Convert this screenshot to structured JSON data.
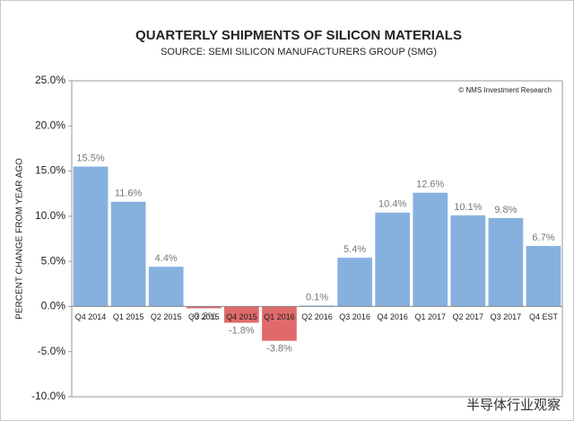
{
  "chart_data": {
    "type": "bar",
    "title": "QUARTERLY SHIPMENTS OF SILICON MATERIALS",
    "subtitle": "SOURCE: SEMI SILICON MANUFACTURERS GROUP (SMG)",
    "y_label": "PERCENT CHANGE FROM YEAR AGO",
    "annotation": "© NMS Investment Research",
    "watermark": "半导体行业观察",
    "categories": [
      "Q4 2014",
      "Q1 2015",
      "Q2 2015",
      "Q3 2015",
      "Q4 2015",
      "Q1 2016",
      "Q2 2016",
      "Q3 2016",
      "Q4 2016",
      "Q1 2017",
      "Q2 2017",
      "Q3 2017",
      "Q4 EST"
    ],
    "values": [
      15.5,
      11.6,
      4.4,
      -0.2,
      -1.8,
      -3.8,
      0.1,
      5.4,
      10.4,
      12.6,
      10.1,
      9.8,
      6.7
    ],
    "value_labels": [
      "15.5%",
      "11.6%",
      "4.4%",
      "-0.2%",
      "-1.8%",
      "-3.8%",
      "0.1%",
      "5.4%",
      "10.4%",
      "12.6%",
      "10.1%",
      "9.8%",
      "6.7%"
    ],
    "color": "#86b1df",
    "negative_color": "#e06a6a",
    "ylim": [
      -10,
      25
    ],
    "yticks": [
      {
        "value": -10,
        "label": "-10.0%"
      },
      {
        "value": -5,
        "label": "-5.0%"
      },
      {
        "value": 0,
        "label": "0.0%"
      },
      {
        "value": 5,
        "label": "5.0%"
      },
      {
        "value": 10,
        "label": "10.0%"
      },
      {
        "value": 15,
        "label": "15.0%"
      },
      {
        "value": 20,
        "label": "20.0%"
      },
      {
        "value": 25,
        "label": "25.0%"
      }
    ],
    "grid": false
  }
}
